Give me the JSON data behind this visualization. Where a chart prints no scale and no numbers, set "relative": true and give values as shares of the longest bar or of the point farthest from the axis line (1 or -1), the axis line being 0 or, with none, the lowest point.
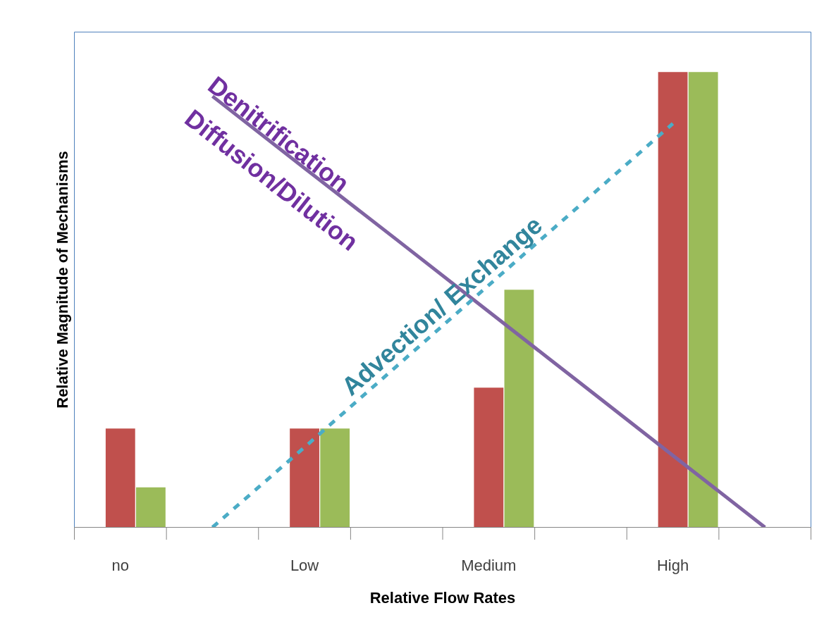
{
  "chart_data": {
    "type": "bar",
    "relative": true,
    "xlabel": "Relative Flow Rates",
    "ylabel": "Relative Magnitude of Mechanisms",
    "categories": [
      "no",
      null,
      "Low",
      null,
      "Medium",
      null,
      "High",
      null
    ],
    "series": [
      {
        "color": "#c0504d",
        "values": [
          0.217,
          null,
          0.217,
          null,
          0.307,
          null,
          1.0,
          null
        ]
      },
      {
        "color": "#9bbb59",
        "values": [
          0.088,
          null,
          0.217,
          null,
          0.522,
          null,
          1.0,
          null
        ]
      },
      {
        "type": "line",
        "color": "#8064a2",
        "line_style": "solid",
        "values": [
          null,
          0.947,
          0.789,
          0.632,
          0.474,
          0.316,
          0.158,
          0.0
        ]
      },
      {
        "type": "line",
        "color": "#4bacc6",
        "line_style": "dashed",
        "values": [
          null,
          0.0,
          0.176,
          0.354,
          0.532,
          0.709,
          0.887,
          null
        ]
      }
    ],
    "annotations": [
      "Denitrification",
      "Diffusion/Dilution",
      "Advection/  Exchange"
    ]
  }
}
